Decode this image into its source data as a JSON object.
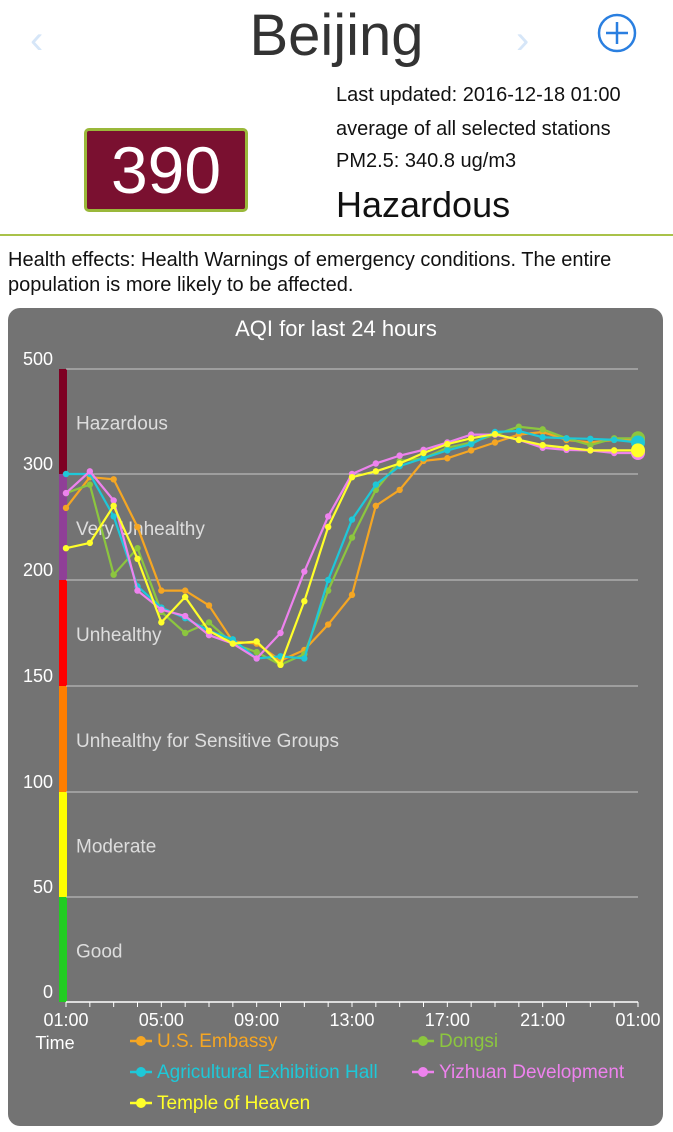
{
  "header": {
    "city": "Beijing",
    "prev_glyph": "‹",
    "next_glyph": "›",
    "add_icon": "plus-circle-icon",
    "accent": "#2a7fe0"
  },
  "summary": {
    "aqi": "390",
    "last_updated": "Last updated: 2016-12-18 01:00",
    "average_note": "average of all selected stations",
    "pm25": "PM2.5: 340.8 ug/m3",
    "level": "Hazardous",
    "aqi_box_color": "#7a1030"
  },
  "health_effects": "Health effects: Health Warnings of emergency conditions. The entire population is more likely to be affected.",
  "chart_data": {
    "type": "line",
    "title": "AQI for last 24 hours",
    "xlabel": "Time",
    "ylabel": "",
    "x_ticks": [
      "01:00",
      "05:00",
      "09:00",
      "13:00",
      "17:00",
      "21:00",
      "01:00"
    ],
    "y_ticks": [
      "0",
      "50",
      "100",
      "150",
      "200",
      "300",
      "500"
    ],
    "bands": [
      {
        "label": "Good",
        "from": 0,
        "to": 50,
        "color": "#22cc22"
      },
      {
        "label": "Moderate",
        "from": 50,
        "to": 100,
        "color": "#ffff00"
      },
      {
        "label": "Unhealthy for Sensitive Groups",
        "from": 100,
        "to": 150,
        "color": "#ff7e00"
      },
      {
        "label": "Unhealthy",
        "from": 150,
        "to": 200,
        "color": "#ff0000"
      },
      {
        "label": "Very Unhealthy",
        "from": 200,
        "to": 300,
        "color": "#8f3f97"
      },
      {
        "label": "Hazardous",
        "from": 300,
        "to": 500,
        "color": "#7e0023"
      }
    ],
    "grid": true,
    "legend_position": "bottom",
    "series": [
      {
        "name": "U.S. Embassy",
        "color": "#f5a623",
        "values": [
          268,
          297,
          295,
          250,
          195,
          195,
          188,
          171,
          170,
          162,
          167,
          179,
          193,
          270,
          285,
          325,
          330,
          345,
          360,
          375,
          380,
          365,
          360,
          365,
          365
        ]
      },
      {
        "name": "Dongsi",
        "color": "#8cc63f",
        "values": [
          282,
          290,
          205,
          230,
          185,
          175,
          180,
          170,
          166,
          160,
          165,
          195,
          240,
          285,
          325,
          330,
          350,
          360,
          375,
          390,
          385,
          368,
          355,
          368,
          368
        ]
      },
      {
        "name": "Agricultural Exhibition Hall",
        "color": "#1ec8d8",
        "values": [
          300,
          300,
          260,
          197,
          187,
          182,
          176,
          172,
          163,
          164,
          163,
          200,
          257,
          290,
          315,
          330,
          345,
          357,
          380,
          382,
          370,
          368,
          367,
          365,
          360
        ]
      },
      {
        "name": "Yizhuan Development",
        "color": "#ee82ee",
        "values": [
          282,
          305,
          275,
          195,
          186,
          183,
          174,
          170,
          163,
          175,
          208,
          260,
          300,
          320,
          335,
          346,
          360,
          375,
          375,
          365,
          350,
          346,
          345,
          340,
          340
        ]
      },
      {
        "name": "Temple of Heaven",
        "color": "#ffff2a",
        "values": [
          230,
          235,
          270,
          220,
          180,
          192,
          176,
          170,
          171,
          160,
          190,
          250,
          297,
          305,
          320,
          340,
          357,
          368,
          376,
          365,
          355,
          350,
          345,
          345,
          345
        ]
      }
    ]
  }
}
